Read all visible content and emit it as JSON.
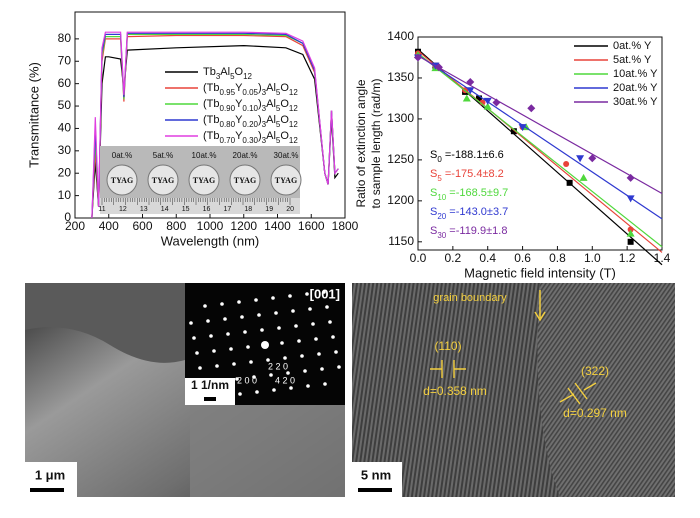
{
  "chart_data": [
    {
      "type": "line",
      "xlabel": "Wavelength (nm)",
      "ylabel": "Transmittance (%)",
      "xlim": [
        200,
        1800
      ],
      "xticks": [
        200,
        400,
        600,
        800,
        1000,
        1200,
        1400,
        1600,
        1800
      ],
      "ylim": [
        0,
        92
      ],
      "yticks": [
        0,
        10,
        20,
        30,
        40,
        50,
        60,
        70,
        80
      ],
      "x": [
        300,
        320,
        340,
        360,
        380,
        400,
        470,
        490,
        510,
        800,
        1200,
        1450,
        1550,
        1620,
        1680,
        1700,
        1720,
        1740,
        1760
      ],
      "series": [
        {
          "name": "Tb3Al5O12",
          "color": "#000000",
          "values": [
            0,
            25,
            5,
            60,
            72,
            72,
            71,
            57,
            75,
            76,
            77,
            76,
            73,
            62,
            20,
            15,
            45,
            18,
            20
          ]
        },
        {
          "name": "(Tb0.95Y0.05)3Al5O12",
          "color": "#e8433a",
          "values": [
            0,
            30,
            5,
            70,
            80,
            80,
            80,
            52,
            81,
            81.5,
            81.5,
            81,
            77,
            65,
            20,
            15,
            48,
            20,
            22
          ]
        },
        {
          "name": "(Tb0.90Y0.10)3Al5O12",
          "color": "#4fd83c",
          "values": [
            0,
            35,
            5,
            72,
            81,
            81,
            81,
            53,
            82,
            82,
            82,
            81.5,
            78,
            66,
            20,
            15,
            48,
            20,
            22
          ]
        },
        {
          "name": "(Tb0.80Y0.20)3Al5O12",
          "color": "#2f39d0",
          "values": [
            0,
            40,
            5,
            74,
            82,
            82,
            82,
            54,
            82.5,
            82.5,
            82.5,
            82,
            78,
            66,
            20,
            15,
            48,
            20,
            22
          ]
        },
        {
          "name": "(Tb0.70Y0.30)3Al5O12",
          "color": "#e03ee0",
          "values": [
            0,
            45,
            5,
            76,
            83,
            83,
            83,
            55,
            83,
            83,
            83,
            82.5,
            79,
            67,
            20,
            15,
            48,
            20,
            22
          ]
        }
      ],
      "inset": {
        "samples": [
          "0at.%",
          "5at.%",
          "10at.%",
          "20at.%",
          "30at.%"
        ],
        "label": "TYAG",
        "ruler": [
          11,
          12,
          13,
          14,
          15,
          16,
          17,
          18,
          19,
          20
        ]
      }
    },
    {
      "type": "scatter",
      "xlabel": "Magnetic field intensity (T)",
      "ylabel": [
        "Ratio of extinction angle",
        "to sample length (rad/m)"
      ],
      "xlim": [
        0,
        1.4
      ],
      "xticks": [
        {
          "value": 0,
          "label": "0.0"
        },
        0.2,
        0.4,
        0.6,
        0.8,
        {
          "value": 1,
          "label": "1.0"
        },
        1.2,
        1.4
      ],
      "ylim": [
        1140,
        1400
      ],
      "yticks": [
        1150,
        1200,
        1250,
        1300,
        1350,
        1400
      ],
      "series": [
        {
          "name": "0at.% Y",
          "color": "#000000",
          "marker": "square",
          "x": [
            0,
            0.1,
            0.27,
            0.35,
            0.55,
            0.87,
            1.22
          ],
          "values": [
            1382,
            1365,
            1333,
            1325,
            1285,
            1222,
            1150
          ],
          "fit": {
            "x": [
              0,
              1.4
            ],
            "values": [
              1385,
              1122
            ]
          },
          "slope_label": "S0 =-188.1±6.6"
        },
        {
          "name": "5at.% Y",
          "color": "#e8433a",
          "marker": "circle",
          "x": [
            0,
            0.1,
            0.27,
            0.37,
            0.6,
            0.85,
            1.22
          ],
          "values": [
            1380,
            1365,
            1335,
            1320,
            1290,
            1245,
            1165
          ],
          "fit": {
            "x": [
              0,
              1.4
            ],
            "values": [
              1383,
              1137
            ]
          },
          "slope_label": "S5 =-175.4±8.2"
        },
        {
          "name": "10at.% Y",
          "color": "#4fd83c",
          "marker": "triangle",
          "x": [
            0,
            0.1,
            0.28,
            0.4,
            0.62,
            0.95,
            1.22
          ],
          "values": [
            1378,
            1362,
            1325,
            1315,
            1290,
            1228,
            1160
          ],
          "fit": {
            "x": [
              0,
              1.4
            ],
            "values": [
              1380,
              1144
            ]
          },
          "slope_label": "S10 =-168.5±9.7"
        },
        {
          "name": "20at.% Y",
          "color": "#2f39d0",
          "marker": "down-triangle",
          "x": [
            0,
            0.1,
            0.3,
            0.4,
            0.6,
            0.93,
            1.22
          ],
          "values": [
            1375,
            1365,
            1335,
            1322,
            1290,
            1252,
            1203
          ],
          "fit": {
            "x": [
              0,
              1.4
            ],
            "values": [
              1378,
              1178
            ]
          },
          "slope_label": "S20 =-143.0±3.7"
        },
        {
          "name": "30at.% Y",
          "color": "#7a2aa0",
          "marker": "diamond",
          "x": [
            0,
            0.12,
            0.3,
            0.45,
            0.65,
            1.0,
            1.22
          ],
          "values": [
            1375,
            1363,
            1345,
            1320,
            1313,
            1252,
            1228
          ],
          "fit": {
            "x": [
              0,
              1.4
            ],
            "values": [
              1377,
              1209
            ]
          },
          "slope_label": "S30 =-119.9±1.8"
        }
      ]
    }
  ],
  "images": {
    "tem": {
      "zone_axis": "[001]",
      "spots": [
        "2 2 0",
        "2 0 0",
        "4 2 0"
      ],
      "inset_scale": "1 1/nm",
      "scale": "1 μm"
    },
    "hrtem": {
      "annotation": "grain boundary",
      "planes": [
        {
          "hkl": "(110)",
          "d": "d=0.358 nm"
        },
        {
          "hkl": "(322)",
          "d": "d=0.297 nm"
        }
      ],
      "scale": "5 nm"
    }
  }
}
